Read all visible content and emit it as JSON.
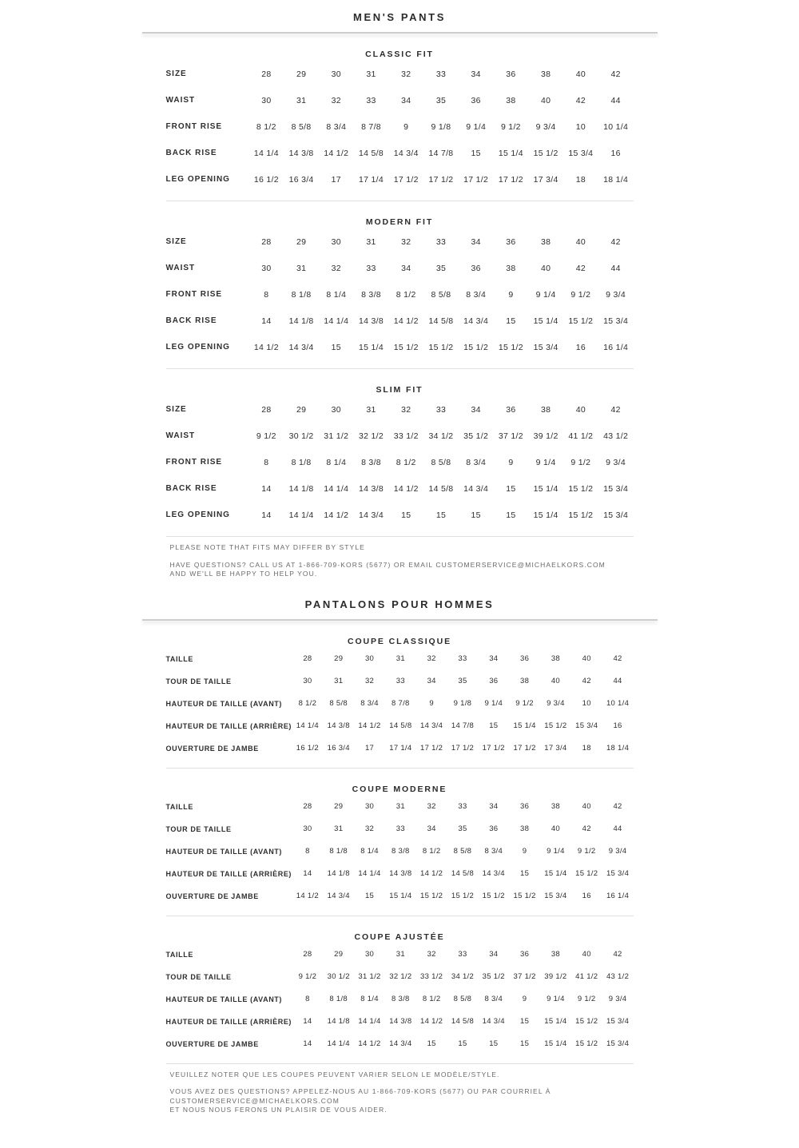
{
  "english": {
    "title": "MEN'S PANTS",
    "sections": [
      {
        "title": "CLASSIC FIT",
        "rows": [
          {
            "label": "SIZE",
            "values": [
              "28",
              "29",
              "30",
              "31",
              "32",
              "33",
              "34",
              "36",
              "38",
              "40",
              "42"
            ]
          },
          {
            "label": "WAIST",
            "values": [
              "30",
              "31",
              "32",
              "33",
              "34",
              "35",
              "36",
              "38",
              "40",
              "42",
              "44"
            ]
          },
          {
            "label": "FRONT RISE",
            "values": [
              "8 1/2",
              "8 5/8",
              "8 3/4",
              "8 7/8",
              "9",
              "9 1/8",
              "9 1/4",
              "9 1/2",
              "9 3/4",
              "10",
              "10 1/4"
            ]
          },
          {
            "label": "BACK RISE",
            "values": [
              "14 1/4",
              "14 3/8",
              "14 1/2",
              "14 5/8",
              "14 3/4",
              "14 7/8",
              "15",
              "15 1/4",
              "15 1/2",
              "15 3/4",
              "16"
            ]
          },
          {
            "label": "LEG OPENING",
            "values": [
              "16 1/2",
              "16 3/4",
              "17",
              "17 1/4",
              "17 1/2",
              "17 1/2",
              "17 1/2",
              "17 1/2",
              "17 3/4",
              "18",
              "18 1/4"
            ]
          }
        ]
      },
      {
        "title": "MODERN FIT",
        "rows": [
          {
            "label": "SIZE",
            "values": [
              "28",
              "29",
              "30",
              "31",
              "32",
              "33",
              "34",
              "36",
              "38",
              "40",
              "42"
            ]
          },
          {
            "label": "WAIST",
            "values": [
              "30",
              "31",
              "32",
              "33",
              "34",
              "35",
              "36",
              "38",
              "40",
              "42",
              "44"
            ]
          },
          {
            "label": "FRONT RISE",
            "values": [
              "8",
              "8 1/8",
              "8 1/4",
              "8 3/8",
              "8 1/2",
              "8 5/8",
              "8 3/4",
              "9",
              "9 1/4",
              "9 1/2",
              "9 3/4"
            ]
          },
          {
            "label": "BACK RISE",
            "values": [
              "14",
              "14 1/8",
              "14 1/4",
              "14 3/8",
              "14 1/2",
              "14 5/8",
              "14 3/4",
              "15",
              "15 1/4",
              "15 1/2",
              "15 3/4"
            ]
          },
          {
            "label": "LEG OPENING",
            "values": [
              "14 1/2",
              "14 3/4",
              "15",
              "15 1/4",
              "15 1/2",
              "15 1/2",
              "15 1/2",
              "15 1/2",
              "15 3/4",
              "16",
              "16 1/4"
            ]
          }
        ]
      },
      {
        "title": "SLIM FIT",
        "rows": [
          {
            "label": "SIZE",
            "values": [
              "28",
              "29",
              "30",
              "31",
              "32",
              "33",
              "34",
              "36",
              "38",
              "40",
              "42"
            ]
          },
          {
            "label": "WAIST",
            "values": [
              "9 1/2",
              "30 1/2",
              "31 1/2",
              "32 1/2",
              "33 1/2",
              "34 1/2",
              "35 1/2",
              "37 1/2",
              "39 1/2",
              "41 1/2",
              "43 1/2"
            ]
          },
          {
            "label": "FRONT RISE",
            "values": [
              "8",
              "8 1/8",
              "8 1/4",
              "8 3/8",
              "8 1/2",
              "8 5/8",
              "8 3/4",
              "9",
              "9 1/4",
              "9 1/2",
              "9 3/4"
            ]
          },
          {
            "label": "BACK RISE",
            "values": [
              "14",
              "14 1/8",
              "14 1/4",
              "14 3/8",
              "14 1/2",
              "14 5/8",
              "14 3/4",
              "15",
              "15 1/4",
              "15 1/2",
              "15 3/4"
            ]
          },
          {
            "label": "LEG OPENING",
            "values": [
              "14",
              "14 1/4",
              "14 1/2",
              "14 3/4",
              "15",
              "15",
              "15",
              "15",
              "15 1/4",
              "15 1/2",
              "15 3/4"
            ]
          }
        ]
      }
    ],
    "notes": {
      "fit_note": "PLEASE NOTE THAT FITS MAY DIFFER BY STYLE",
      "contact_line1": "HAVE QUESTIONS? CALL US AT 1-866-709-KORS (5677) OR EMAIL CUSTOMERSERVICE@MICHAELKORS.COM",
      "contact_line2": "AND WE'LL BE HAPPY TO HELP YOU."
    }
  },
  "french": {
    "title": "PANTALONS POUR HOMMES",
    "sections": [
      {
        "title": "COUPE CLASSIQUE",
        "rows": [
          {
            "label": "TAILLE",
            "values": [
              "28",
              "29",
              "30",
              "31",
              "32",
              "33",
              "34",
              "36",
              "38",
              "40",
              "42"
            ]
          },
          {
            "label": "TOUR DE TAILLE",
            "values": [
              "30",
              "31",
              "32",
              "33",
              "34",
              "35",
              "36",
              "38",
              "40",
              "42",
              "44"
            ]
          },
          {
            "label": "HAUTEUR DE TAILLE (AVANT)",
            "values": [
              "8 1/2",
              "8 5/8",
              "8 3/4",
              "8 7/8",
              "9",
              "9 1/8",
              "9 1/4",
              "9 1/2",
              "9 3/4",
              "10",
              "10 1/4"
            ]
          },
          {
            "label": "HAUTEUR DE TAILLE (ARRIÈRE)",
            "values": [
              "14 1/4",
              "14 3/8",
              "14 1/2",
              "14 5/8",
              "14 3/4",
              "14 7/8",
              "15",
              "15 1/4",
              "15 1/2",
              "15 3/4",
              "16"
            ]
          },
          {
            "label": "OUVERTURE DE JAMBE",
            "values": [
              "16 1/2",
              "16 3/4",
              "17",
              "17 1/4",
              "17 1/2",
              "17 1/2",
              "17 1/2",
              "17 1/2",
              "17 3/4",
              "18",
              "18 1/4"
            ]
          }
        ]
      },
      {
        "title": "COUPE MODERNE",
        "rows": [
          {
            "label": "TAILLE",
            "values": [
              "28",
              "29",
              "30",
              "31",
              "32",
              "33",
              "34",
              "36",
              "38",
              "40",
              "42"
            ]
          },
          {
            "label": "TOUR DE TAILLE",
            "values": [
              "30",
              "31",
              "32",
              "33",
              "34",
              "35",
              "36",
              "38",
              "40",
              "42",
              "44"
            ]
          },
          {
            "label": "HAUTEUR DE TAILLE (AVANT)",
            "values": [
              "8",
              "8 1/8",
              "8 1/4",
              "8 3/8",
              "8 1/2",
              "8 5/8",
              "8 3/4",
              "9",
              "9 1/4",
              "9 1/2",
              "9 3/4"
            ]
          },
          {
            "label": "HAUTEUR DE TAILLE (ARRIÈRE)",
            "values": [
              "14",
              "14 1/8",
              "14 1/4",
              "14 3/8",
              "14 1/2",
              "14 5/8",
              "14 3/4",
              "15",
              "15 1/4",
              "15 1/2",
              "15 3/4"
            ]
          },
          {
            "label": "OUVERTURE DE JAMBE",
            "values": [
              "14 1/2",
              "14 3/4",
              "15",
              "15 1/4",
              "15 1/2",
              "15 1/2",
              "15 1/2",
              "15 1/2",
              "15 3/4",
              "16",
              "16 1/4"
            ]
          }
        ]
      },
      {
        "title": "COUPE AJUSTÉE",
        "rows": [
          {
            "label": "TAILLE",
            "values": [
              "28",
              "29",
              "30",
              "31",
              "32",
              "33",
              "34",
              "36",
              "38",
              "40",
              "42"
            ]
          },
          {
            "label": "TOUR DE TAILLE",
            "values": [
              "9 1/2",
              "30 1/2",
              "31 1/2",
              "32 1/2",
              "33 1/2",
              "34 1/2",
              "35 1/2",
              "37 1/2",
              "39 1/2",
              "41 1/2",
              "43 1/2"
            ]
          },
          {
            "label": "HAUTEUR DE TAILLE (AVANT)",
            "values": [
              "8",
              "8 1/8",
              "8 1/4",
              "8 3/8",
              "8 1/2",
              "8 5/8",
              "8 3/4",
              "9",
              "9 1/4",
              "9 1/2",
              "9 3/4"
            ]
          },
          {
            "label": "HAUTEUR DE TAILLE (ARRIÈRE)",
            "values": [
              "14",
              "14 1/8",
              "14 1/4",
              "14 3/8",
              "14 1/2",
              "14 5/8",
              "14 3/4",
              "15",
              "15 1/4",
              "15 1/2",
              "15 3/4"
            ]
          },
          {
            "label": "OUVERTURE DE JAMBE",
            "values": [
              "14",
              "14 1/4",
              "14 1/2",
              "14 3/4",
              "15",
              "15",
              "15",
              "15",
              "15 1/4",
              "15 1/2",
              "15 3/4"
            ]
          }
        ]
      }
    ],
    "notes": {
      "fit_note": "VEUILLEZ NOTER QUE LES COUPES PEUVENT VARIER SELON LE MODÈLE/STYLE.",
      "contact_line1": "VOUS AVEZ DES QUESTIONS? APPELEZ-NOUS AU 1-866-709-KORS (5677) OU PAR COURRIEL À CUSTOMERSERVICE@MICHAELKORS.COM",
      "contact_line2": "ET NOUS NOUS FERONS UN PLAISIR DE VOUS AIDER."
    }
  }
}
